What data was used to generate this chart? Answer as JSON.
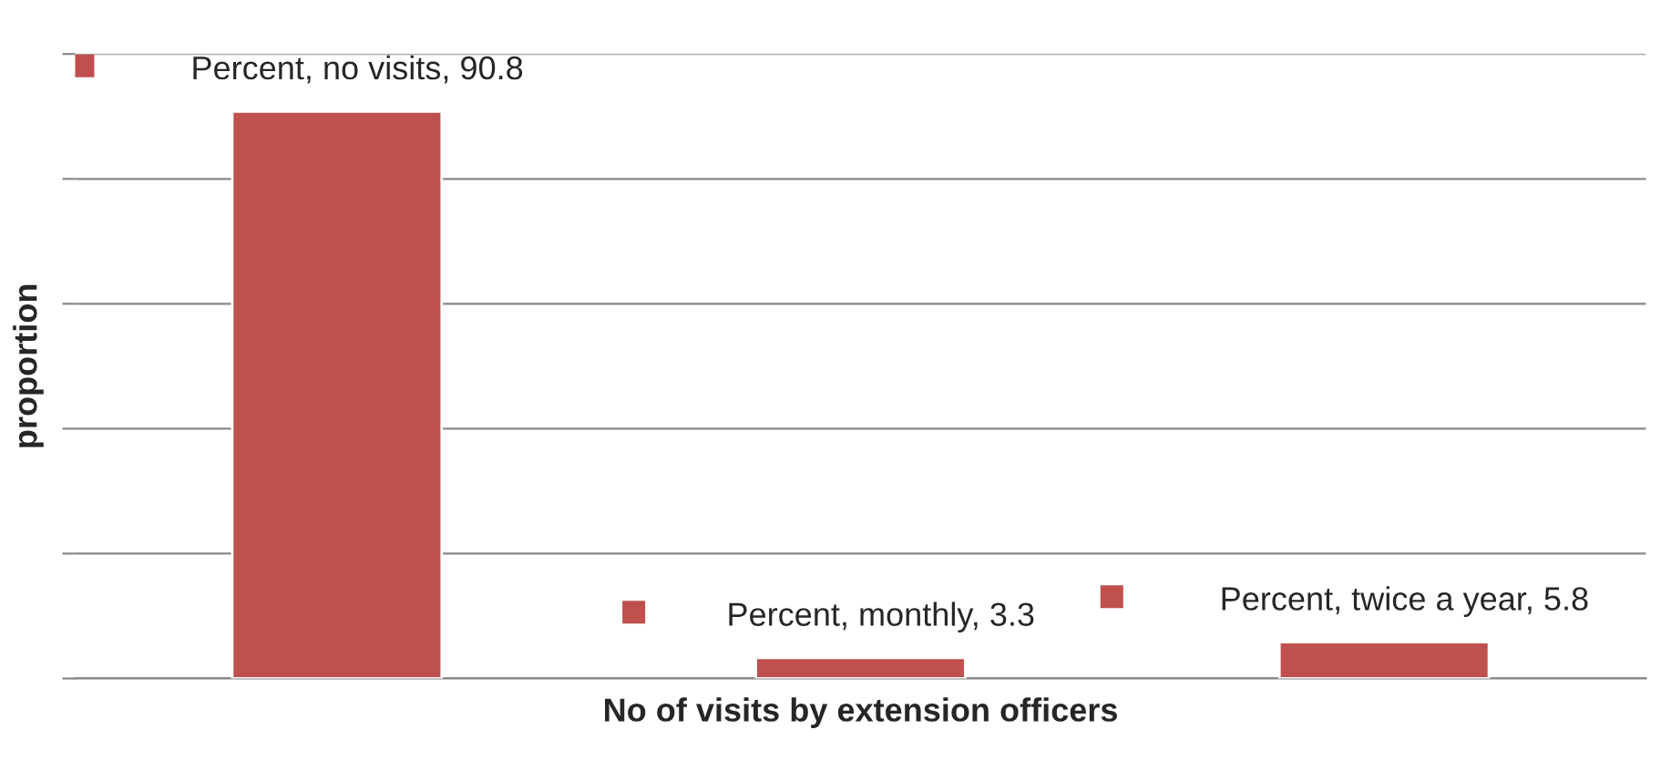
{
  "chart_data": {
    "type": "bar",
    "xlabel": "No of visits by extension officers",
    "ylabel": "proportion",
    "categories": [
      null,
      null,
      null
    ],
    "series": [
      {
        "color": "#c0504d",
        "values": [
          90.8,
          3.3,
          5.8
        ],
        "value_labels": [
          "Percent, no visits, 90.8",
          "Percent, monthly, 3.3",
          "Percent, twice a year, 5.8"
        ]
      }
    ],
    "ylim": [
      0,
      100
    ],
    "yticks": [
      {
        "value": 0,
        "label": null
      },
      {
        "value": 20,
        "label": null
      },
      {
        "value": 40,
        "label": null
      },
      {
        "value": 60,
        "label": null
      },
      {
        "value": 80,
        "label": null
      },
      {
        "value": 100,
        "label": null
      }
    ],
    "grid": "y",
    "legend": false
  }
}
